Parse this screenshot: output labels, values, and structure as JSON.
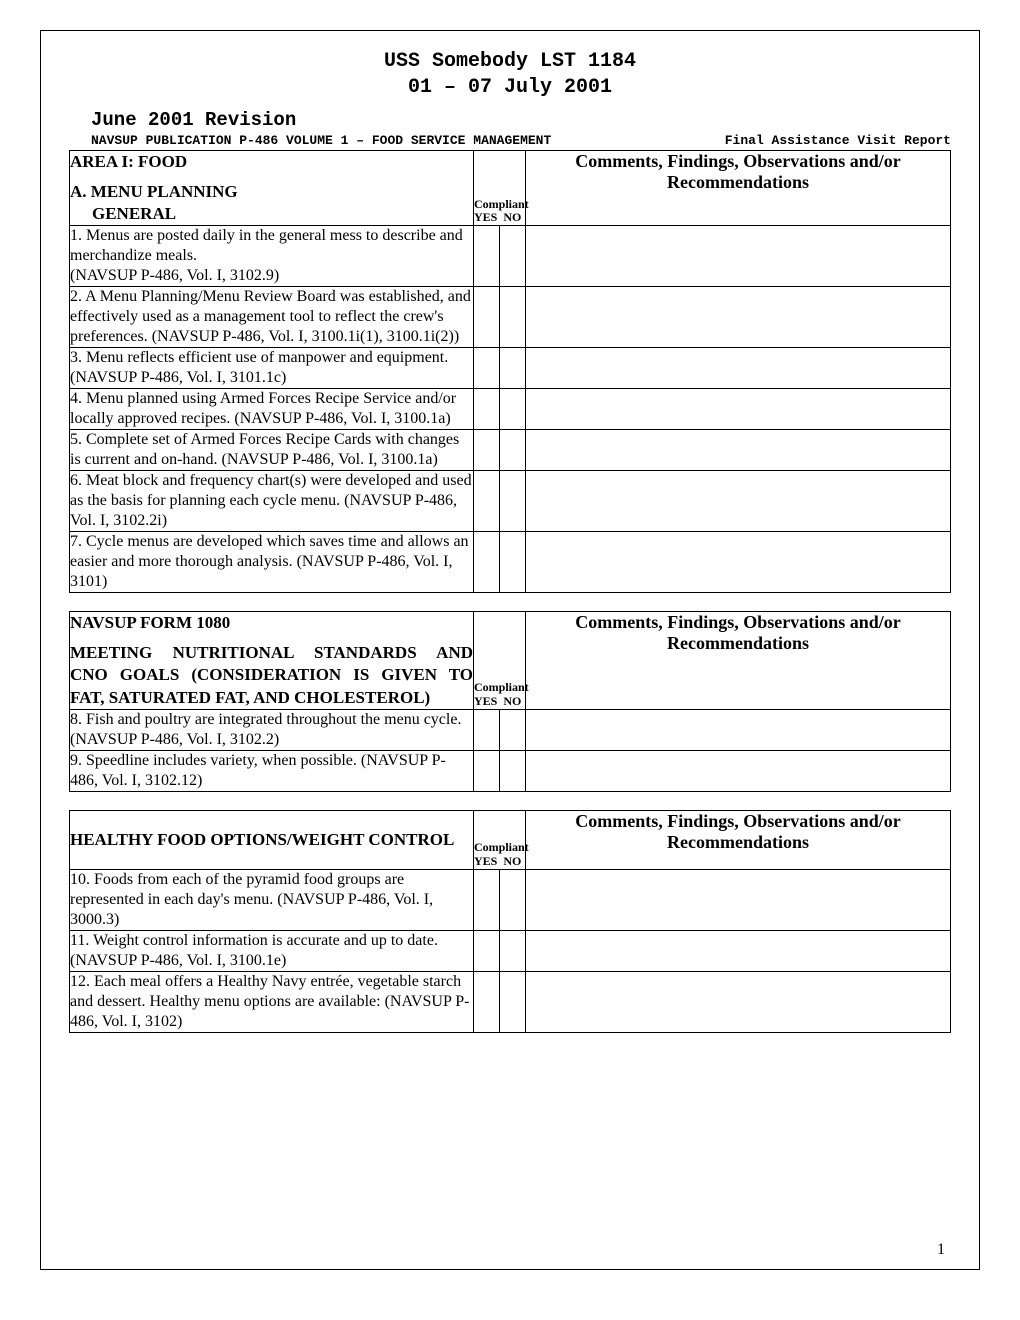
{
  "header": {
    "line1": "USS Somebody  LST 1184",
    "line2": "01 – 07 July 2001",
    "revision": "June 2001 Revision",
    "pub_left": "NAVSUP PUBLICATION P-486 VOLUME 1 – FOOD SERVICE MANAGEMENT",
    "pub_right": "Final Assistance Visit Report"
  },
  "labels": {
    "compliant": "Compliant",
    "yes": "YES",
    "no": "NO",
    "comments_header": "Comments, Findings, Observations and/or Recommendations",
    "page_number": "1"
  },
  "section1": {
    "area": "AREA I:  FOOD",
    "title": "A.  MENU PLANNING",
    "subtitle": "GENERAL",
    "items": [
      "1. Menus are posted daily in the general mess to describe and merchandize meals.\n(NAVSUP P-486, Vol. I, 3102.9)",
      "2. A Menu Planning/Menu Review Board was established, and effectively used as a management tool to reflect the crew's preferences. (NAVSUP P-486, Vol. I, 3100.1i(1), 3100.1i(2))",
      "3. Menu reflects efficient use of manpower and equipment. (NAVSUP P-486, Vol. I, 3101.1c)",
      "4. Menu planned using Armed Forces Recipe Service and/or locally approved recipes. (NAVSUP P-486, Vol. I, 3100.1a)",
      "5. Complete set of Armed Forces Recipe Cards with changes is current and on-hand. (NAVSUP P-486, Vol. I, 3100.1a)",
      "6. Meat block and frequency chart(s) were developed and used as the basis for planning each cycle menu. (NAVSUP P-486, Vol. I, 3102.2i)",
      "7. Cycle menus are developed which saves time and allows an easier and more thorough analysis. (NAVSUP P-486, Vol. I, 3101)"
    ]
  },
  "section2": {
    "form_title": "NAVSUP FORM 1080",
    "title_line1": "MEETING NUTRITIONAL STANDARDS AND",
    "title_line2": "CNO GOALS (CONSIDERATION IS GIVEN TO",
    "title_line3": "FAT, SATURATED FAT, AND CHOLESTEROL)",
    "items": [
      "8. Fish and poultry are integrated throughout the menu cycle. (NAVSUP P-486, Vol. I, 3102.2)",
      "9. Speedline includes variety, when possible. (NAVSUP P-486, Vol. I, 3102.12)"
    ]
  },
  "section3": {
    "title": "HEALTHY FOOD OPTIONS/WEIGHT CONTROL",
    "items": [
      "10. Foods from each of the pyramid food groups are represented in each day's menu. (NAVSUP P-486, Vol. I, 3000.3)",
      "11. Weight control information is accurate and up to date. (NAVSUP P-486, Vol. I, 3100.1e)",
      "12. Each meal offers a Healthy Navy entrée, vegetable starch and dessert. Healthy menu options are available: (NAVSUP P-486, Vol. I, 3102)\n "
    ]
  }
}
